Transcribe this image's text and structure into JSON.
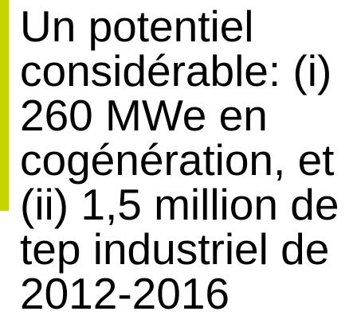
{
  "body": {
    "lines": [
      "Un potentiel",
      "considérable: (i)",
      "260 MWe en",
      "cogénération, et",
      "(ii) 1,5 million de",
      "tep industriel de",
      "2012-2016"
    ]
  }
}
